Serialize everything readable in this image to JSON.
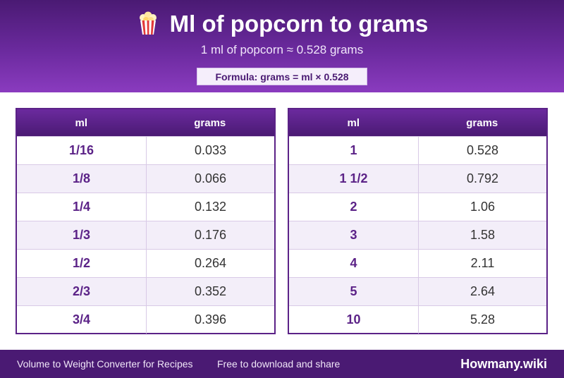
{
  "header": {
    "title": "Ml of popcorn to grams",
    "subtitle": "1 ml of popcorn ≈ 0.528 grams",
    "formula": "Formula: grams = ml × 0.528",
    "icon": "popcorn-icon"
  },
  "tables": {
    "col_ml": "ml",
    "col_grams": "grams",
    "left": [
      {
        "ml": "1/16",
        "grams": "0.033"
      },
      {
        "ml": "1/8",
        "grams": "0.066"
      },
      {
        "ml": "1/4",
        "grams": "0.132"
      },
      {
        "ml": "1/3",
        "grams": "0.176"
      },
      {
        "ml": "1/2",
        "grams": "0.264"
      },
      {
        "ml": "2/3",
        "grams": "0.352"
      },
      {
        "ml": "3/4",
        "grams": "0.396"
      }
    ],
    "right": [
      {
        "ml": "1",
        "grams": "0.528"
      },
      {
        "ml": "1 1/2",
        "grams": "0.792"
      },
      {
        "ml": "2",
        "grams": "1.06"
      },
      {
        "ml": "3",
        "grams": "1.58"
      },
      {
        "ml": "4",
        "grams": "2.11"
      },
      {
        "ml": "5",
        "grams": "2.64"
      },
      {
        "ml": "10",
        "grams": "5.28"
      }
    ]
  },
  "footer": {
    "left_text": "Volume to Weight Converter for Recipes",
    "middle_text": "Free to download and share",
    "brand": "Howmany.wiki"
  },
  "colors": {
    "brand_purple": "#4a1a73",
    "accent_purple": "#5b2287",
    "row_alt": "#f3eef9"
  }
}
